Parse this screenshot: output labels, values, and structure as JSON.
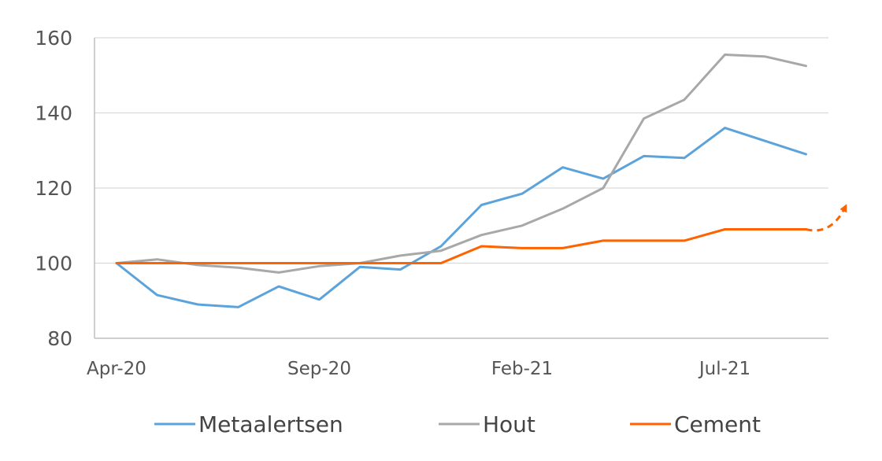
{
  "chart_data": {
    "type": "line",
    "title": "",
    "xlabel": "",
    "ylabel": "",
    "x": [
      "Apr-20",
      "May-20",
      "Jun-20",
      "Jul-20",
      "Aug-20",
      "Sep-20",
      "Oct-20",
      "Nov-20",
      "Dec-20",
      "Jan-21",
      "Feb-21",
      "Mar-21",
      "Apr-21",
      "May-21",
      "Jun-21",
      "Jul-21",
      "Aug-21",
      "Sep-21"
    ],
    "x_tick_labels": [
      "Apr-20",
      "Sep-20",
      "Feb-21",
      "Jul-21"
    ],
    "x_tick_values": [
      "Apr-20",
      "Sep-20",
      "Feb-21",
      "Jul-21"
    ],
    "ylim": [
      80,
      160
    ],
    "y_ticks": [
      80,
      100,
      120,
      140,
      160
    ],
    "grid": true,
    "legend_position": "bottom",
    "series": [
      {
        "name": "Metaalertsen",
        "color": "#5ba3da",
        "values": [
          100,
          91.5,
          89,
          88.3,
          93.8,
          90.3,
          99,
          98.3,
          104.5,
          115.5,
          118.5,
          125.5,
          122.5,
          128.5,
          128,
          136,
          132.5,
          129
        ]
      },
      {
        "name": "Hout",
        "color": "#a8a8a8",
        "values": [
          100,
          101,
          99.5,
          98.8,
          97.5,
          99.2,
          100,
          102,
          103.3,
          107.5,
          110,
          114.5,
          120,
          138.5,
          143.5,
          155.5,
          155,
          152.5
        ]
      },
      {
        "name": "Cement",
        "color": "#ff6200",
        "values": [
          100,
          100,
          100,
          100,
          100,
          100,
          100,
          100,
          100,
          104.5,
          104,
          104,
          106,
          106,
          106,
          109,
          109,
          109
        ],
        "projection": "rising"
      }
    ]
  }
}
